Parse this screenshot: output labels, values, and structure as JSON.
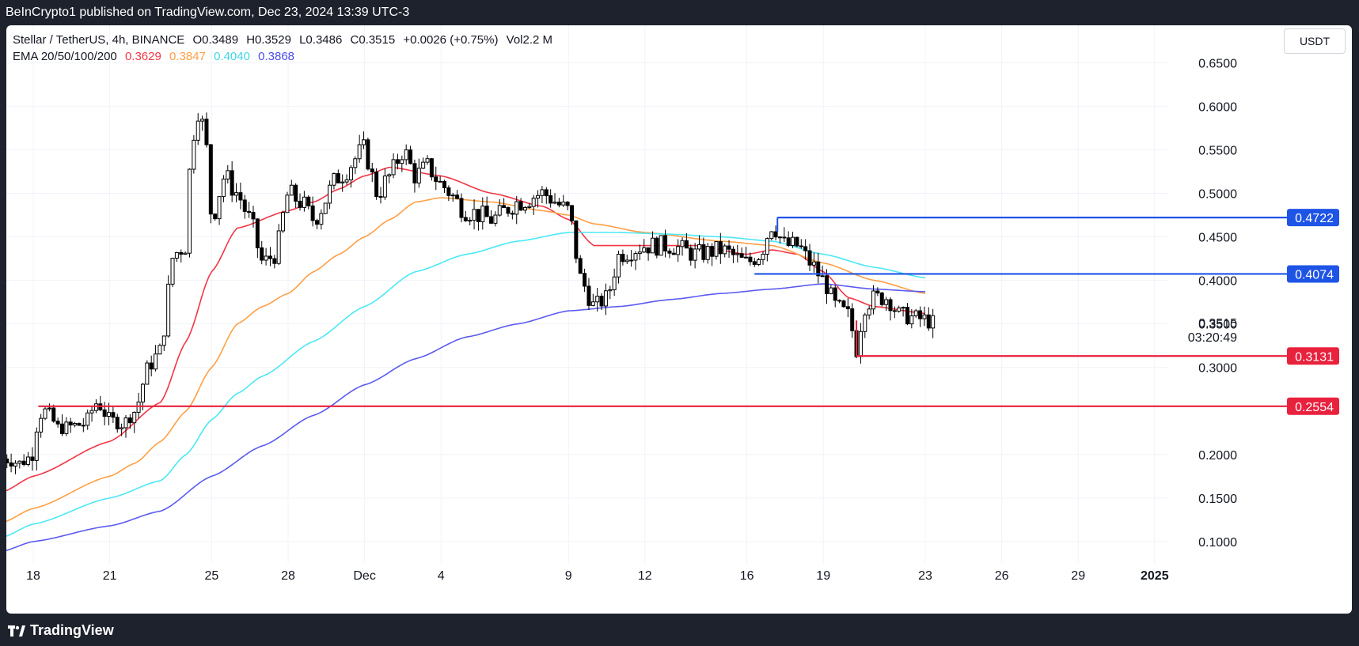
{
  "header": {
    "publisher_line": "BeInCrypto1 published on TradingView.com, Dec 23, 2024 13:39 UTC-3"
  },
  "footer": {
    "brand": "TradingView"
  },
  "legend": {
    "symbol_line": "Stellar / TetherUS, 4h, BINANCE",
    "open": "O0.3489",
    "high": "H0.3529",
    "low": "L0.3486",
    "close": "C0.3515",
    "change": "+0.0026 (+0.75%)",
    "volume": "Vol2.2 M",
    "ema_label": "EMA 20/50/100/200",
    "ema_values": [
      "0.3629",
      "0.3847",
      "0.4040",
      "0.3868"
    ]
  },
  "currency_button": "USDT",
  "colors": {
    "up_candle": "#ffffff",
    "down_candle": "#000000",
    "ema20": "#f23645",
    "ema50": "#ff9f45",
    "ema100": "#4ce8f5",
    "ema200": "#5b5bf0",
    "support_line": "#e8213d",
    "resistance_line": "#1e54e6"
  },
  "chart_data": {
    "type": "candlestick",
    "title": "Stellar / TetherUS, 4h, BINANCE",
    "y_axis": {
      "ticks": [
        "0.6500",
        "0.6000",
        "0.5500",
        "0.5000",
        "0.4500",
        "0.4000",
        "0.3500",
        "0.3000",
        "0.2000",
        "0.1500",
        "0.1000"
      ],
      "ylim": [
        0.045,
        0.695
      ],
      "position": "right"
    },
    "x_axis": {
      "ticks": [
        "18",
        "21",
        "25",
        "28",
        "Dec",
        "4",
        "9",
        "12",
        "16",
        "19",
        "23",
        "26",
        "29",
        "2025"
      ],
      "tick_day_index": [
        0,
        3,
        7,
        10,
        13,
        16,
        21,
        24,
        28,
        31,
        35,
        38,
        41,
        44
      ]
    },
    "x_start": "Nov 18 2024",
    "price_label": {
      "value": "0.3515",
      "countdown": "03:20:49"
    },
    "horizontal_levels": [
      {
        "value": 0.4722,
        "label": "0.4722",
        "type": "resistance",
        "from_day": 29.2
      },
      {
        "value": 0.4074,
        "label": "0.4074",
        "type": "resistance",
        "from_day": 28.3
      },
      {
        "value": 0.3131,
        "label": "0.3131",
        "type": "support",
        "from_day": 32.3
      },
      {
        "value": 0.2554,
        "label": "0.2554",
        "type": "support",
        "from_day": 0.2
      }
    ],
    "ema_series": [
      {
        "name": "EMA 20",
        "key": "ema20",
        "points": [
          [
            -1.2,
            0.157
          ],
          [
            0,
            0.175
          ],
          [
            3,
            0.215
          ],
          [
            5,
            0.26
          ],
          [
            6,
            0.33
          ],
          [
            7,
            0.41
          ],
          [
            8,
            0.46
          ],
          [
            10,
            0.48
          ],
          [
            11,
            0.49
          ],
          [
            12,
            0.505
          ],
          [
            13,
            0.52
          ],
          [
            14,
            0.53
          ],
          [
            16,
            0.52
          ],
          [
            18,
            0.5
          ],
          [
            20,
            0.485
          ],
          [
            21,
            0.47
          ],
          [
            22,
            0.44
          ],
          [
            23,
            0.44
          ],
          [
            26,
            0.44
          ],
          [
            28,
            0.43
          ],
          [
            29,
            0.435
          ],
          [
            30,
            0.43
          ],
          [
            31,
            0.41
          ],
          [
            32,
            0.38
          ],
          [
            33,
            0.37
          ],
          [
            35,
            0.362
          ]
        ]
      },
      {
        "name": "EMA 50",
        "key": "ema50",
        "points": [
          [
            -1.2,
            0.122
          ],
          [
            0,
            0.138
          ],
          [
            3,
            0.175
          ],
          [
            4,
            0.19
          ],
          [
            5,
            0.215
          ],
          [
            6,
            0.25
          ],
          [
            7,
            0.3
          ],
          [
            8,
            0.35
          ],
          [
            9,
            0.37
          ],
          [
            10,
            0.385
          ],
          [
            11,
            0.41
          ],
          [
            12,
            0.43
          ],
          [
            13,
            0.45
          ],
          [
            14,
            0.47
          ],
          [
            15,
            0.49
          ],
          [
            16,
            0.495
          ],
          [
            18,
            0.49
          ],
          [
            20,
            0.48
          ],
          [
            21,
            0.475
          ],
          [
            22,
            0.465
          ],
          [
            24,
            0.455
          ],
          [
            27,
            0.445
          ],
          [
            29,
            0.44
          ],
          [
            31,
            0.42
          ],
          [
            33,
            0.4
          ],
          [
            35,
            0.385
          ]
        ]
      },
      {
        "name": "EMA 100",
        "key": "ema100",
        "points": [
          [
            -1.2,
            0.105
          ],
          [
            0,
            0.12
          ],
          [
            3,
            0.15
          ],
          [
            5,
            0.17
          ],
          [
            6,
            0.2
          ],
          [
            7,
            0.24
          ],
          [
            8,
            0.27
          ],
          [
            9,
            0.29
          ],
          [
            11,
            0.33
          ],
          [
            13,
            0.37
          ],
          [
            15,
            0.41
          ],
          [
            17,
            0.43
          ],
          [
            19,
            0.445
          ],
          [
            21,
            0.455
          ],
          [
            23,
            0.455
          ],
          [
            25,
            0.453
          ],
          [
            27,
            0.45
          ],
          [
            29,
            0.445
          ],
          [
            31,
            0.43
          ],
          [
            33,
            0.415
          ],
          [
            35,
            0.403
          ]
        ]
      },
      {
        "name": "EMA 200",
        "key": "ema200",
        "points": [
          [
            -1.2,
            0.089
          ],
          [
            0,
            0.1
          ],
          [
            3,
            0.118
          ],
          [
            5,
            0.135
          ],
          [
            7,
            0.175
          ],
          [
            9,
            0.21
          ],
          [
            11,
            0.245
          ],
          [
            13,
            0.28
          ],
          [
            15,
            0.31
          ],
          [
            17,
            0.335
          ],
          [
            19,
            0.35
          ],
          [
            21,
            0.365
          ],
          [
            23,
            0.37
          ],
          [
            25,
            0.378
          ],
          [
            27,
            0.385
          ],
          [
            29,
            0.39
          ],
          [
            31,
            0.396
          ],
          [
            33,
            0.39
          ],
          [
            35,
            0.387
          ]
        ]
      }
    ],
    "price_path": [
      [
        -1.2,
        0.195
      ],
      [
        -0.5,
        0.19
      ],
      [
        0,
        0.2
      ],
      [
        0.2,
        0.245
      ],
      [
        0.5,
        0.25
      ],
      [
        1,
        0.23
      ],
      [
        2,
        0.235
      ],
      [
        2.5,
        0.26
      ],
      [
        3,
        0.24
      ],
      [
        3.5,
        0.235
      ],
      [
        4,
        0.25
      ],
      [
        4.5,
        0.3
      ],
      [
        5,
        0.32
      ],
      [
        5.5,
        0.43
      ],
      [
        6,
        0.44
      ],
      [
        6.2,
        0.56
      ],
      [
        6.5,
        0.6
      ],
      [
        6.8,
        0.55
      ],
      [
        7,
        0.47
      ],
      [
        7.5,
        0.52
      ],
      [
        8,
        0.5
      ],
      [
        8.5,
        0.47
      ],
      [
        9,
        0.42
      ],
      [
        9.5,
        0.43
      ],
      [
        10,
        0.5
      ],
      [
        10.5,
        0.49
      ],
      [
        11,
        0.47
      ],
      [
        12,
        0.52
      ],
      [
        13,
        0.55
      ],
      [
        13.5,
        0.5
      ],
      [
        14,
        0.52
      ],
      [
        14.5,
        0.55
      ],
      [
        15,
        0.52
      ],
      [
        15.5,
        0.53
      ],
      [
        16,
        0.51
      ],
      [
        17,
        0.48
      ],
      [
        18,
        0.47
      ],
      [
        19,
        0.49
      ],
      [
        20,
        0.5
      ],
      [
        21,
        0.48
      ],
      [
        21.5,
        0.4
      ],
      [
        22,
        0.37
      ],
      [
        22.5,
        0.38
      ],
      [
        23,
        0.43
      ],
      [
        24,
        0.44
      ],
      [
        25,
        0.44
      ],
      [
        26,
        0.43
      ],
      [
        27,
        0.435
      ],
      [
        28,
        0.42
      ],
      [
        28.5,
        0.43
      ],
      [
        29,
        0.465
      ],
      [
        29.5,
        0.44
      ],
      [
        30,
        0.44
      ],
      [
        30.5,
        0.42
      ],
      [
        31,
        0.4
      ],
      [
        31.5,
        0.37
      ],
      [
        32,
        0.36
      ],
      [
        32.3,
        0.32
      ],
      [
        32.6,
        0.37
      ],
      [
        33,
        0.38
      ],
      [
        33.5,
        0.38
      ],
      [
        34,
        0.36
      ],
      [
        35,
        0.355
      ],
      [
        35.3,
        0.351
      ]
    ]
  }
}
